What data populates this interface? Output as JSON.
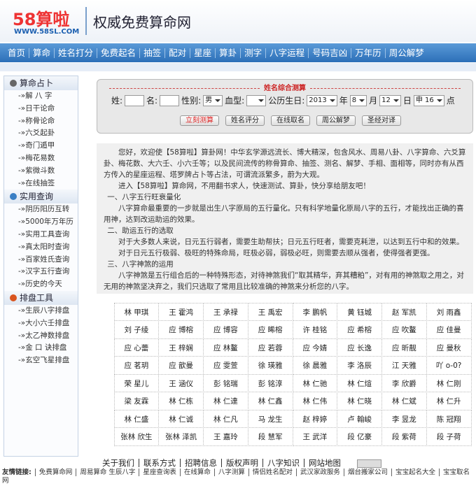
{
  "header": {
    "logo": "58算啦",
    "url": "WWW.58SL.COM",
    "slogan": "权威免费算命网"
  },
  "nav": [
    "首页",
    "算命",
    "姓名打分",
    "免费起名",
    "抽签",
    "配对",
    "星座",
    "算卦",
    "测字",
    "八字运程",
    "号码吉凶",
    "万年历",
    "周公解梦"
  ],
  "sidebar": [
    {
      "title": "算命占卜",
      "items": [
        "-»解 八 字",
        "-»日干论命",
        "-»称骨论命",
        "-»六爻起卦",
        "-»奇门遁甲",
        "-»梅花易数",
        "-»紫微斗数",
        "-»在线抽签"
      ]
    },
    {
      "title": "实用查询",
      "items": [
        "-»阴历阳历互转",
        "-»5000年万年历",
        "-»实用工具查询",
        "-»真太阳时查询",
        "-»百家姓氏查询",
        "-»汉字五行查询",
        "-»历史的今天"
      ]
    },
    {
      "title": "排盘工具",
      "items": [
        "-»生辰八字排盘",
        "-»大小六壬排盘",
        "-»太乙神数排盘",
        "-»金 口 诀排盘",
        "-»玄空飞星排盘"
      ]
    }
  ],
  "form": {
    "title": "姓名综合测算",
    "surname_label": "姓:",
    "name_label": "名:",
    "gender_label": "性别:",
    "gender": "男",
    "blood_label": "血型:",
    "birthday_label": "公历生日:",
    "year": "2013",
    "year_unit": "年",
    "month": "8",
    "month_unit": "月",
    "day": "12",
    "day_unit": "日",
    "hour": "申 16",
    "hour_unit": "点",
    "buttons": [
      "立刻测算",
      "姓名评分",
      "在线取名",
      "周公解梦",
      "圣经对译"
    ]
  },
  "intro": [
    "您好，欢迎使【58算啦】算卦网！中华玄学源远流长、博大精深，包含风水、周易八卦、八字算命、六爻算卦、梅花数、大六壬、小六壬等；以及民间流传的称骨算命、抽签、测名、解梦、手相、面相等，同时亦有从西方传入的星座运程、塔罗牌占卜等占法，可谓流派繁多，蔚为大观。",
    "进入【58算啦】算命网，不用翻书求人，快速测试、算卦，快分享给朋友吧！",
    "一、八字五行旺衰量化",
    "八字算命最重要的一步就是出生八字原局的五行量化。只有科学地量化原局八字的五行，才能找出正确的喜用神，达到改运助运的效果。",
    "二、助运五行的选取",
    "对于大多数人来说，日元五行弱者，需要生助帮扶；日元五行旺者，需要克耗泄，以达到五行中和的效果。",
    "对于日元五行极弱、极旺的特殊命局，旺极必弱，弱极必旺，则需要去顺从强者，使得强者更强。",
    "三、八字神煞的运用",
    "八字神煞是五行组合后的一种特殊形态，对待神煞我们“取其精华，弃其糟粕”，对有用的神煞取之用之，对无用的神煞坚决弃之，我们只选取了常用且比较准确的神煞来分析您的八字。"
  ],
  "names": [
    [
      "林 甲琪",
      "王 霍鸿",
      "王 承禄",
      "王 禹宏",
      "李 鹏帆",
      "黄 钰城",
      "赵 军凯",
      "刘 雨鑫"
    ],
    [
      "刘 子绫",
      "应 博榕",
      "应 博容",
      "应 晞榕",
      "许 桂铭",
      "应 希榕",
      "应 吹鳌",
      "应 佳曼"
    ],
    [
      "应 心蕾",
      "王 梓娴",
      "应 林鳌",
      "应 若蓉",
      "应 今婧",
      "应 长逸",
      "应 昕靓",
      "应 曼秋"
    ],
    [
      "应 茗玥",
      "应 歆曼",
      "应 雯萱",
      "徐 瑛雅",
      "徐 晨雅",
      "李 洛辰",
      "江 天雅",
      "吖 o-0?"
    ],
    [
      "荣 星儿",
      "王 涵仪",
      "彭 铭瑞",
      "彭 铭淳",
      "林 仁驰",
      "林 仁煊",
      "李 欣爵",
      "林 仁刚"
    ],
    [
      "梁 友霖",
      "林 仁栋",
      "林 仁達",
      "林 仁鑫",
      "林 仁伟",
      "林 仁晓",
      "林 仁斌",
      "林 仁升"
    ],
    [
      "林 仁盛",
      "林 仁诚",
      "林 仁凡",
      "马 龙生",
      "赵 梓婷",
      "卢 翰峻",
      "李 昱龙",
      "陈 冠翔"
    ],
    [
      "张林 欣生",
      "张林 泽凯",
      "王 嘉玲",
      "段 慧军",
      "王 武洋",
      "段 亿豪",
      "段 紫荷",
      "段 子荷"
    ]
  ],
  "footer": {
    "links": [
      "关于我们",
      "联系方式",
      "招聘信息",
      "版权声明",
      "八字知识",
      "网站地图"
    ],
    "friends_label": "友情链接:",
    "friends": [
      "免费算命网",
      "周易算命 生辰八字",
      "星座查询表",
      "在线算命",
      "八字测算",
      "情侣姓名配对",
      "武汉家政服务",
      "烟台搬家公司",
      "宝宝起名大全",
      "宝宝取名网"
    ]
  }
}
